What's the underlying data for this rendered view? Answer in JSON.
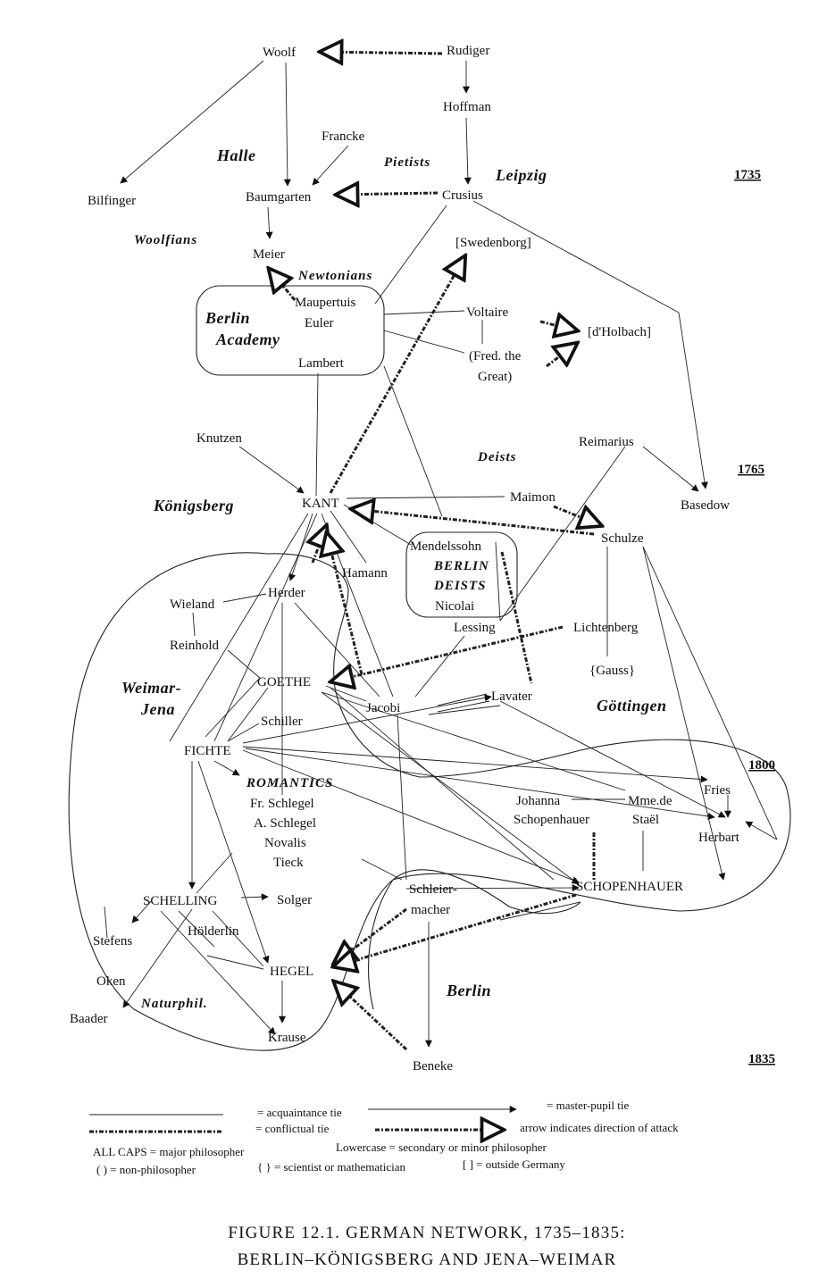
{
  "nodes": {
    "woolf": "Woolf",
    "rudiger": "Rudiger",
    "hoffman": "Hoffman",
    "francke": "Francke",
    "bilfinger": "Bilfinger",
    "baumgarten": "Baumgarten",
    "crusius": "Crusius",
    "meier": "Meier",
    "swedenborg": "[Swedenborg]",
    "maupertuis": "Maupertuis",
    "euler": "Euler",
    "voltaire": "Voltaire",
    "dholbach": "[d'Holbach]",
    "fred_line1": "(Fred. the",
    "fred_line2": "Great)",
    "lambert": "Lambert",
    "knutzen": "Knutzen",
    "reimarius": "Reimarius",
    "kant": "KANT",
    "maimon": "Maimon",
    "basedow": "Basedow",
    "schulze": "Schulze",
    "mendelssohn": "Mendelssohn",
    "nicolai": "Nicolai",
    "hamann": "Hamann",
    "herder": "Herder",
    "wieland": "Wieland",
    "reinhold": "Reinhold",
    "lessing": "Lessing",
    "lichtenberg": "Lichtenberg",
    "gauss": "{Gauss}",
    "goethe": "GOETHE",
    "jacobi": "Jacobi",
    "lavater": "Lavater",
    "schiller": "Schiller",
    "fichte": "FICHTE",
    "fries": "Fries",
    "fr_schlegel": "Fr. Schlegel",
    "a_schlegel": "A. Schlegel",
    "novalis": "Novalis",
    "tieck": "Tieck",
    "johanna_line1": "Johanna",
    "johanna_line2": "Schopenhauer",
    "stael_line1": "Mme.de",
    "stael_line2": "Staël",
    "herbart": "Herbart",
    "schelling": "SCHELLING",
    "solger": "Solger",
    "schleier_line1": "Schleier-",
    "schleier_line2": "macher",
    "schopenhauer": "SCHOPENHAUER",
    "stefens": "Stefens",
    "holderlin": "Hölderlin",
    "hegel": "HEGEL",
    "oken": "Oken",
    "baader": "Baader",
    "krause": "Krause",
    "beneke": "Beneke"
  },
  "regions": {
    "halle": "Halle",
    "leipzig": "Leipzig",
    "berlin_academy_line1": "Berlin",
    "berlin_academy_line2": "Academy",
    "konigsberg": "Königsberg",
    "weimar_line1": "Weimar-",
    "weimar_line2": "Jena",
    "gottingen": "Göttingen",
    "berlin": "Berlin"
  },
  "groups": {
    "pietists": "Pietists",
    "woolfians": "Woolfians",
    "newtonians": "Newtonians",
    "deists": "Deists",
    "berlin_deists_line1": "BERLIN",
    "berlin_deists_line2": "DEISTS",
    "romantics": "ROMANTICS",
    "naturphil": "Naturphil."
  },
  "years": [
    "1735",
    "1765",
    "1800",
    "1835"
  ],
  "legend": {
    "acquaintance": "= acquaintance tie",
    "master_pupil": "= master-pupil tie",
    "conflictual": "= conflictual tie",
    "attack": "arrow indicates direction of attack",
    "all_caps": "ALL CAPS = major philosopher",
    "lowercase": "Lowercase = secondary or minor philosopher",
    "non_philosopher": "( ) = non-philosopher",
    "scientist": "{ } = scientist or mathematician",
    "outside": "[ ] = outside Germany"
  },
  "caption": {
    "line1": "FIGURE 12.1. GERMAN NETWORK, 1735–1835:",
    "line2": "BERLIN–KÖNIGSBERG AND JENA–WEIMAR"
  }
}
